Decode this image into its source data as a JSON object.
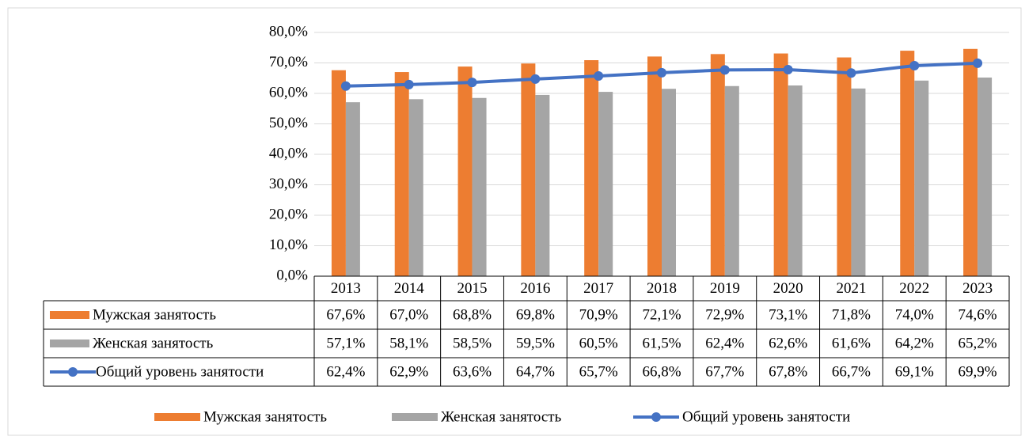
{
  "chart_data": {
    "type": "bar",
    "categories": [
      "2013",
      "2014",
      "2015",
      "2016",
      "2017",
      "2018",
      "2019",
      "2020",
      "2021",
      "2022",
      "2023"
    ],
    "series": [
      {
        "name": "Мужская занятость",
        "color": "#ed7d31",
        "chart": "bar",
        "values": [
          67.6,
          67.0,
          68.8,
          69.8,
          70.9,
          72.1,
          72.9,
          73.1,
          71.8,
          74.0,
          74.6
        ],
        "value_labels": [
          "67,6%",
          "67,0%",
          "68,8%",
          "69,8%",
          "70,9%",
          "72,1%",
          "72,9%",
          "73,1%",
          "71,8%",
          "74,0%",
          "74,6%"
        ]
      },
      {
        "name": "Женская занятость",
        "color": "#a5a5a5",
        "chart": "bar",
        "values": [
          57.1,
          58.1,
          58.5,
          59.5,
          60.5,
          61.5,
          62.4,
          62.6,
          61.6,
          64.2,
          65.2
        ],
        "value_labels": [
          "57,1%",
          "58,1%",
          "58,5%",
          "59,5%",
          "60,5%",
          "61,5%",
          "62,4%",
          "62,6%",
          "61,6%",
          "64,2%",
          "65,2%"
        ]
      },
      {
        "name": "Общий уровень занятости",
        "color": "#4472c4",
        "chart": "line",
        "values": [
          62.4,
          62.9,
          63.6,
          64.7,
          65.7,
          66.8,
          67.7,
          67.8,
          66.7,
          69.1,
          69.9
        ],
        "value_labels": [
          "62,4%",
          "62,9%",
          "63,6%",
          "64,7%",
          "65,7%",
          "66,8%",
          "67,7%",
          "67,8%",
          "66,7%",
          "69,1%",
          "69,9%"
        ]
      }
    ],
    "ylim": [
      0,
      80
    ],
    "yticks": [
      {
        "value": 0,
        "label": "0,0%"
      },
      {
        "value": 10,
        "label": "10,0%"
      },
      {
        "value": 20,
        "label": "20,0%"
      },
      {
        "value": 30,
        "label": "30,0%"
      },
      {
        "value": 40,
        "label": "40,0%"
      },
      {
        "value": 50,
        "label": "50,0%"
      },
      {
        "value": 60,
        "label": "60,0%"
      },
      {
        "value": 70,
        "label": "70,0%"
      },
      {
        "value": 80,
        "label": "80,0%"
      }
    ],
    "grid": true,
    "legend": "bottom"
  }
}
